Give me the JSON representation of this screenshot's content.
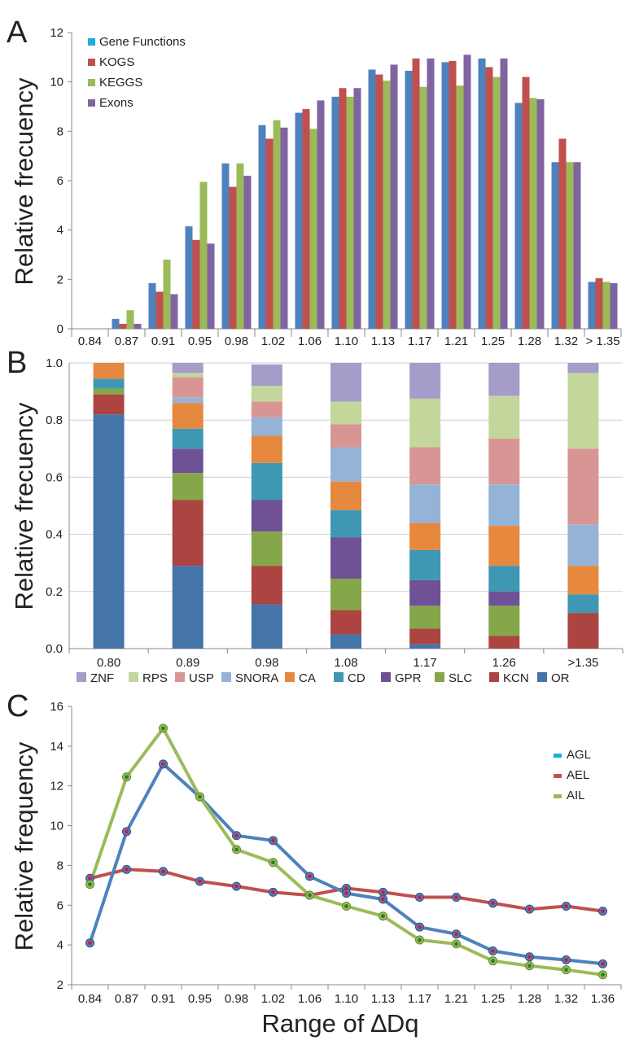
{
  "panels": {
    "a": {
      "letter": "A",
      "ylabel": "Relative frecuency"
    },
    "b": {
      "letter": "B",
      "ylabel": "Relative frecuency"
    },
    "c": {
      "letter": "C",
      "ylabel": "Relative frequency",
      "xlabel": "Range of ∆Dq"
    }
  },
  "colors": {
    "blue": "#4f81bd",
    "red": "#c0504d",
    "green": "#9bbb59",
    "purple": "#8064a2",
    "cyan": "#1aaee0",
    "ZNF": "#a59cc9",
    "RPS": "#c3d69b",
    "USP": "#d99594",
    "SNORA": "#95b3d7",
    "CA": "#e6883e",
    "CD": "#3e98b3",
    "GPR": "#6f5196",
    "SLC": "#86a64a",
    "KCN": "#ac4442",
    "OR": "#4574a8"
  },
  "chart_data": [
    {
      "type": "bar",
      "categories": [
        "0.84",
        "0.87",
        "0.91",
        "0.95",
        "0.98",
        "1.02",
        "1.06",
        "1.10",
        "1.13",
        "1.17",
        "1.21",
        "1.25",
        "1.28",
        "1.32",
        "> 1.35"
      ],
      "ylim": [
        0,
        12
      ],
      "yticks": [
        "0",
        "2",
        "4",
        "6",
        "8",
        "10",
        "12"
      ],
      "series": [
        {
          "name": "Gene Functions",
          "values": [
            0,
            0.4,
            1.85,
            4.15,
            6.7,
            8.25,
            8.75,
            9.4,
            10.5,
            10.45,
            10.8,
            10.95,
            9.15,
            6.75,
            1.9
          ]
        },
        {
          "name": "KOGS",
          "values": [
            0,
            0.2,
            1.5,
            3.6,
            5.75,
            7.7,
            8.9,
            9.75,
            10.3,
            10.95,
            10.85,
            10.6,
            10.2,
            7.7,
            2.05
          ]
        },
        {
          "name": "KEGGS",
          "values": [
            0,
            0.75,
            2.8,
            5.95,
            6.7,
            8.45,
            8.1,
            9.4,
            10.05,
            9.8,
            9.85,
            10.2,
            9.35,
            6.75,
            1.9
          ]
        },
        {
          "name": "Exons",
          "values": [
            0,
            0.2,
            1.4,
            3.45,
            6.2,
            8.15,
            9.25,
            9.75,
            10.7,
            10.95,
            11.1,
            10.95,
            9.3,
            6.75,
            1.85
          ]
        }
      ]
    },
    {
      "type": "bar",
      "stacked": true,
      "categories": [
        "0.80",
        "0.89",
        "0.98",
        "1.08",
        "1.17",
        "1.26",
        ">1.35"
      ],
      "ylim": [
        0,
        1
      ],
      "yticks": [
        "0.0",
        "0.2",
        "0.4",
        "0.6",
        "0.8",
        "1.0"
      ],
      "legend_position": "bottom",
      "legend_order": [
        "ZNF",
        "RPS",
        "USP",
        "SNORA",
        "CA",
        "CD",
        "GPR",
        "SLC",
        "KCN",
        "OR"
      ],
      "series": [
        {
          "name": "OR",
          "values": [
            0.82,
            0.29,
            0.155,
            0.05,
            0.015,
            0,
            0
          ]
        },
        {
          "name": "KCN",
          "values": [
            0.07,
            0.23,
            0.135,
            0.085,
            0.055,
            0.045,
            0.125
          ]
        },
        {
          "name": "SLC",
          "values": [
            0.02,
            0.095,
            0.12,
            0.11,
            0.08,
            0.105,
            0
          ]
        },
        {
          "name": "GPR",
          "values": [
            0,
            0.085,
            0.11,
            0.145,
            0.09,
            0.05,
            0
          ]
        },
        {
          "name": "CD",
          "values": [
            0.035,
            0.07,
            0.13,
            0.095,
            0.105,
            0.09,
            0.065
          ]
        },
        {
          "name": "CA",
          "values": [
            0.055,
            0.09,
            0.095,
            0.1,
            0.095,
            0.14,
            0.1
          ]
        },
        {
          "name": "SNORA",
          "values": [
            0,
            0.02,
            0.065,
            0.12,
            0.135,
            0.145,
            0.145
          ]
        },
        {
          "name": "USP",
          "values": [
            0,
            0.07,
            0.055,
            0.08,
            0.13,
            0.16,
            0.265
          ]
        },
        {
          "name": "RPS",
          "values": [
            0,
            0.015,
            0.055,
            0.08,
            0.17,
            0.15,
            0.265
          ]
        },
        {
          "name": "ZNF",
          "values": [
            0,
            0.035,
            0.075,
            0.135,
            0.125,
            0.115,
            0.035
          ]
        }
      ]
    },
    {
      "type": "line",
      "categories": [
        "0.84",
        "0.87",
        "0.91",
        "0.95",
        "0.98",
        "1.02",
        "1.06",
        "1.10",
        "1.13",
        "1.17",
        "1.21",
        "1.25",
        "1.28",
        "1.32",
        "1.36"
      ],
      "ylim": [
        2,
        16
      ],
      "yticks": [
        "2",
        "4",
        "6",
        "8",
        "10",
        "12",
        "14",
        "16"
      ],
      "legend_position": "right",
      "series": [
        {
          "name": "AGL",
          "values": [
            4.1,
            9.7,
            13.1,
            11.45,
            9.5,
            9.25,
            7.45,
            6.6,
            6.3,
            4.9,
            4.55,
            3.7,
            3.4,
            3.25,
            3.05
          ]
        },
        {
          "name": "AEL",
          "values": [
            7.35,
            7.8,
            7.7,
            7.2,
            6.95,
            6.65,
            6.5,
            6.85,
            6.65,
            6.4,
            6.4,
            6.1,
            5.8,
            5.95,
            5.7
          ]
        },
        {
          "name": "AIL",
          "values": [
            7.05,
            12.45,
            14.9,
            11.45,
            8.8,
            8.15,
            6.5,
            5.95,
            5.45,
            4.25,
            4.05,
            3.2,
            2.95,
            2.75,
            2.5
          ]
        }
      ]
    }
  ]
}
